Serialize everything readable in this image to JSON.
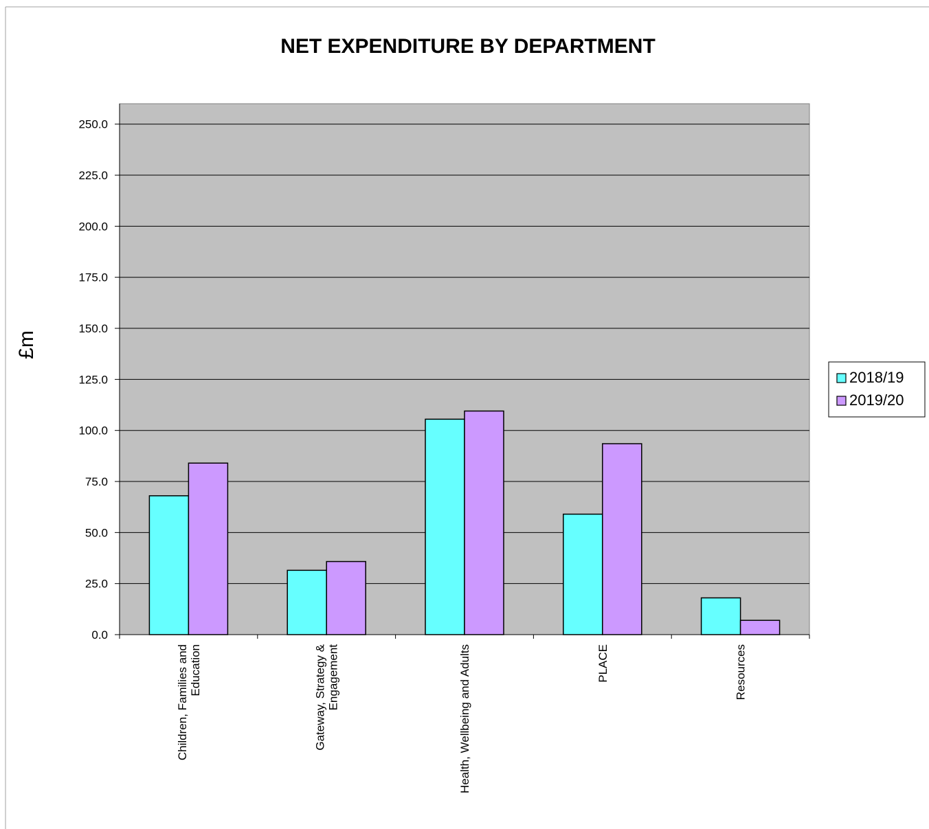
{
  "chart_data": {
    "type": "bar",
    "title": "NET EXPENDITURE BY DEPARTMENT",
    "xlabel": "",
    "ylabel": "£m",
    "ylim": [
      0,
      260
    ],
    "yticks": [
      "0.0",
      "25.0",
      "50.0",
      "75.0",
      "100.0",
      "125.0",
      "150.0",
      "175.0",
      "200.0",
      "225.0",
      "250.0"
    ],
    "ytick_values": [
      0,
      25,
      50,
      75,
      100,
      125,
      150,
      175,
      200,
      225,
      250
    ],
    "grid": true,
    "legend_position": "right",
    "categories": [
      [
        "Children, Families and",
        "Education"
      ],
      [
        "Gateway, Strategy &",
        "Engagement"
      ],
      [
        "Health, Wellbeing and Adults"
      ],
      [
        "PLACE"
      ],
      [
        "Resources"
      ]
    ],
    "series": [
      {
        "name": "2018/19",
        "color": "#66FFFF",
        "values": [
          68.0,
          31.5,
          105.5,
          59.0,
          18.0
        ]
      },
      {
        "name": "2019/20",
        "color": "#CC99FF",
        "values": [
          84.0,
          35.8,
          109.5,
          93.5,
          7.0
        ]
      }
    ],
    "plot_background": "#C0C0C0"
  }
}
